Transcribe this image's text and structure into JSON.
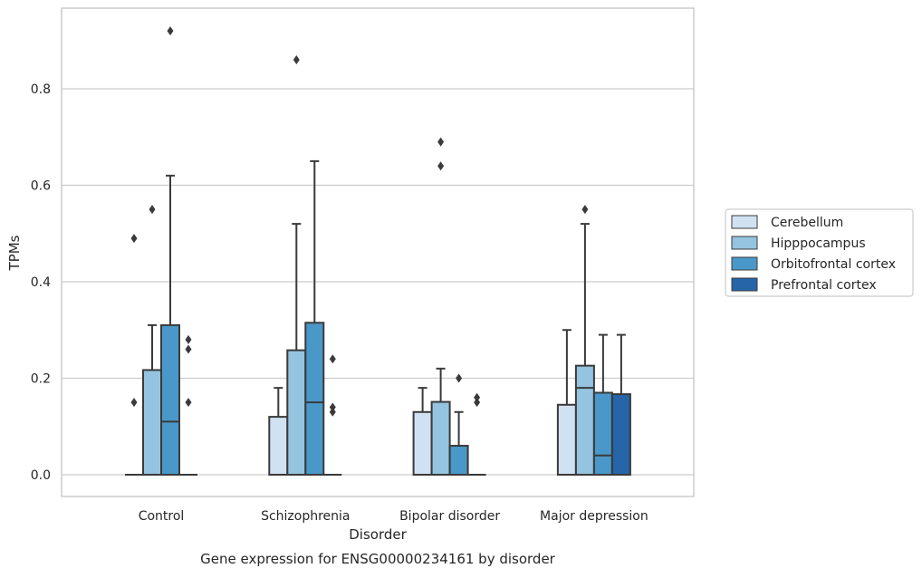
{
  "chart_data": {
    "type": "box",
    "title": "Gene expression for ENSG00000234161 by disorder",
    "xlabel": "Disorder",
    "ylabel": "TPMs",
    "ylim": [
      -0.045,
      0.955
    ],
    "yticks": [
      "0.0",
      "0.2",
      "0.4",
      "0.6",
      "0.8"
    ],
    "grid": true,
    "legend_position": "right",
    "categories": [
      "Control",
      "Schizophrenia",
      "Bipolar disorder",
      "Major depression"
    ],
    "series": [
      {
        "name": "Cerebellum",
        "color": "#d0e1f2",
        "boxes": [
          {
            "min": 0,
            "q1": 0,
            "median": 0,
            "q3": 0,
            "max": 0,
            "fliers": [
              0.49,
              0.15
            ]
          },
          {
            "min": 0,
            "q1": 0,
            "median": 0,
            "q3": 0.12,
            "max": 0.18,
            "fliers": []
          },
          {
            "min": 0,
            "q1": 0,
            "median": 0,
            "q3": 0.13,
            "max": 0.18,
            "fliers": []
          },
          {
            "min": 0,
            "q1": 0,
            "median": 0,
            "q3": 0.145,
            "max": 0.3,
            "fliers": []
          }
        ]
      },
      {
        "name": "Hipppocampus",
        "color": "#94c4df",
        "boxes": [
          {
            "min": 0,
            "q1": 0,
            "median": 0,
            "q3": 0.217,
            "max": 0.31,
            "fliers": [
              0.55
            ]
          },
          {
            "min": 0,
            "q1": 0,
            "median": 0,
            "q3": 0.258,
            "max": 0.52,
            "fliers": [
              0.86
            ]
          },
          {
            "min": 0,
            "q1": 0,
            "median": 0,
            "q3": 0.151,
            "max": 0.22,
            "fliers": [
              0.69,
              0.64
            ]
          },
          {
            "min": 0,
            "q1": 0,
            "median": 0.18,
            "q3": 0.226,
            "max": 0.52,
            "fliers": [
              0.55
            ]
          }
        ]
      },
      {
        "name": "Orbitofrontal cortex",
        "color": "#4a98c9",
        "boxes": [
          {
            "min": 0,
            "q1": 0,
            "median": 0.11,
            "q3": 0.31,
            "max": 0.62,
            "fliers": [
              0.92
            ]
          },
          {
            "min": 0,
            "q1": 0,
            "median": 0.15,
            "q3": 0.315,
            "max": 0.65,
            "fliers": []
          },
          {
            "min": 0,
            "q1": 0,
            "median": 0,
            "q3": 0.06,
            "max": 0.13,
            "fliers": [
              0.2
            ]
          },
          {
            "min": 0,
            "q1": 0,
            "median": 0.04,
            "q3": 0.17,
            "max": 0.29,
            "fliers": []
          }
        ]
      },
      {
        "name": "Prefrontal cortex",
        "color": "#2565a8",
        "boxes": [
          {
            "min": 0,
            "q1": 0,
            "median": 0,
            "q3": 0,
            "max": 0,
            "fliers": [
              0.28,
              0.26,
              0.15
            ]
          },
          {
            "min": 0,
            "q1": 0,
            "median": 0,
            "q3": 0,
            "max": 0,
            "fliers": [
              0.24,
              0.14,
              0.13
            ]
          },
          {
            "min": 0,
            "q1": 0,
            "median": 0,
            "q3": 0,
            "max": 0,
            "fliers": [
              0.16,
              0.15
            ]
          },
          {
            "min": 0,
            "q1": 0,
            "median": 0,
            "q3": 0.167,
            "max": 0.29,
            "fliers": []
          }
        ]
      }
    ]
  }
}
